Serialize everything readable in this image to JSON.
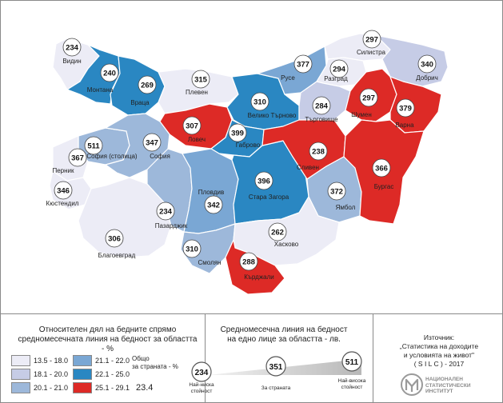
{
  "regions": [
    {
      "id": "vidin",
      "name": "Видин",
      "value": "234",
      "color": "#ececf6"
    },
    {
      "id": "montana",
      "name": "Монтана",
      "value": "240",
      "color": "#2a87c2"
    },
    {
      "id": "vratsa",
      "name": "Враца",
      "value": "269",
      "color": "#2a87c2"
    },
    {
      "id": "pleven",
      "name": "Плевен",
      "value": "315",
      "color": "#ececf6"
    },
    {
      "id": "lovech",
      "name": "Ловеч",
      "value": "307",
      "color": "#dd2a26"
    },
    {
      "id": "vtarnovo",
      "name": "Велико Търново",
      "value": "310",
      "color": "#2a87c2"
    },
    {
      "id": "gabrovo",
      "name": "Габрово",
      "value": "399",
      "color": "#2a87c2"
    },
    {
      "id": "ruse",
      "name": "Русе",
      "value": "377",
      "color": "#7aa7d4"
    },
    {
      "id": "silistra",
      "name": "Силистра",
      "value": "297",
      "color": "#ececf6"
    },
    {
      "id": "razgrad",
      "name": "Разград",
      "value": "294",
      "color": "#ececf6"
    },
    {
      "id": "dobrich",
      "name": "Добрич",
      "value": "340",
      "color": "#c6cce6"
    },
    {
      "id": "targovishte",
      "name": "Търговище",
      "value": "284",
      "color": "#c6cce6"
    },
    {
      "id": "shumen",
      "name": "Шумен",
      "value": "297",
      "color": "#dd2a26"
    },
    {
      "id": "varna",
      "name": "Варна",
      "value": "379",
      "color": "#dd2a26"
    },
    {
      "id": "sofia_city",
      "name": "София (столица)",
      "value": "511",
      "color": "#9db8da"
    },
    {
      "id": "sofia",
      "name": "София",
      "value": "347",
      "color": "#9db8da"
    },
    {
      "id": "pernik",
      "name": "Перник",
      "value": "367",
      "color": "#ececf6"
    },
    {
      "id": "kyustendil",
      "name": "Кюстендил",
      "value": "346",
      "color": "#ececf6"
    },
    {
      "id": "blagoevgrad",
      "name": "Благоевград",
      "value": "306",
      "color": "#ececf6"
    },
    {
      "id": "pazardzhik",
      "name": "Пазарджик",
      "value": "234",
      "color": "#9db8da"
    },
    {
      "id": "plovdiv",
      "name": "Пловдив",
      "value": "342",
      "color": "#7aa7d4"
    },
    {
      "id": "smolyan",
      "name": "Смолян",
      "value": "310",
      "color": "#9db8da"
    },
    {
      "id": "stara_zagora",
      "name": "Стара Загора",
      "value": "396",
      "color": "#2a87c2"
    },
    {
      "id": "sliven",
      "name": "Сливен",
      "value": "238",
      "color": "#dd2a26"
    },
    {
      "id": "yambol",
      "name": "Ямбол",
      "value": "372",
      "color": "#9db8da"
    },
    {
      "id": "burgas",
      "name": "Бургас",
      "value": "366",
      "color": "#dd2a26"
    },
    {
      "id": "haskovo",
      "name": "Хасково",
      "value": "262",
      "color": "#ececf6"
    },
    {
      "id": "kardzhali",
      "name": "Кърджали",
      "value": "288",
      "color": "#dd2a26"
    }
  ],
  "legend": {
    "title_line1": "Относителен дял на бедните спрямо",
    "title_line2": "средномесечната линия на бедност за областта - %",
    "bins": [
      {
        "label": "13.5 - 18.0",
        "color": "#ececf6"
      },
      {
        "label": "18.1 - 20.0",
        "color": "#c6cce6"
      },
      {
        "label": "20.1 - 21.0",
        "color": "#9db8da"
      },
      {
        "label": "21.1 - 22.0",
        "color": "#7aa7d4"
      },
      {
        "label": "22.1 - 25.0",
        "color": "#2a87c2"
      },
      {
        "label": "25.1 - 29.1",
        "color": "#dd2a26"
      }
    ],
    "overall_line1": "Общо",
    "overall_line2": "за страната - %",
    "overall_value": "23.4"
  },
  "poverty_line": {
    "title_line1": "Средномесечна линия на бедност",
    "title_line2": "на едно лице за областта - лв.",
    "min_value": "234",
    "min_label_line1": "Най-ниска",
    "min_label_line2": "стойност",
    "country_value": "351",
    "country_label": "За страната",
    "max_value": "511",
    "max_label_line1": "Най-висока",
    "max_label_line2": "стойност"
  },
  "source": {
    "line1": "Източник:",
    "line2": "„Статистика на доходите",
    "line3": "и условията на живот\"",
    "line4": "( S I L C ) - 2017"
  },
  "logo": {
    "line1": "НАЦИОНАЛЕН",
    "line2": "СТАТИСТИЧЕСКИ",
    "line3": "ИНСТИТУТ"
  }
}
